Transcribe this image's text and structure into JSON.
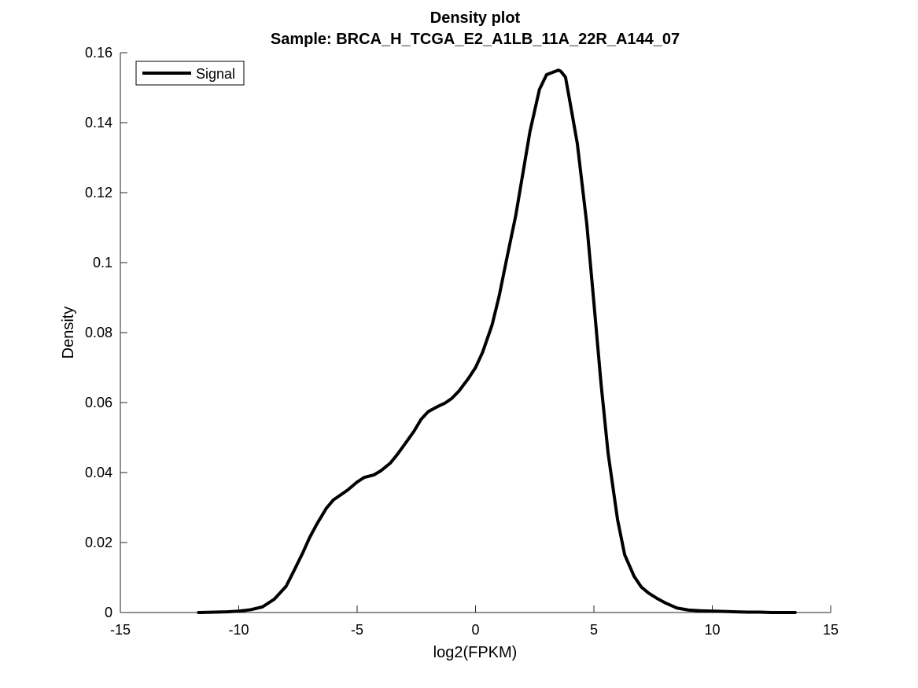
{
  "chart_data": {
    "type": "line",
    "title": "Density plot",
    "subtitle": "Sample: BRCA_H_TCGA_E2_A1LB_11A_22R_A144_07",
    "xlabel": "log2(FPKM)",
    "ylabel": "Density",
    "xlim": [
      -15,
      15
    ],
    "ylim": [
      0,
      0.16
    ],
    "xticks": [
      -15,
      -10,
      -5,
      0,
      5,
      10,
      15
    ],
    "xtick_labels": [
      "-15",
      "-10",
      "-5",
      "0",
      "5",
      "10",
      "15"
    ],
    "yticks": [
      0,
      0.02,
      0.04,
      0.06,
      0.08,
      0.1,
      0.12,
      0.14,
      0.16
    ],
    "ytick_labels": [
      "0",
      "0.02",
      "0.04",
      "0.06",
      "0.08",
      "0.1",
      "0.12",
      "0.14",
      "0.16"
    ],
    "grid": false,
    "legend_position": "top-left",
    "series": [
      {
        "name": "Signal",
        "color": "#000000",
        "x": [
          -11.7,
          -11.0,
          -10.5,
          -10.0,
          -9.5,
          -9.0,
          -8.5,
          -8.0,
          -7.7,
          -7.3,
          -7.0,
          -6.7,
          -6.3,
          -6.0,
          -5.7,
          -5.4,
          -5.0,
          -4.7,
          -4.3,
          -4.0,
          -3.6,
          -3.3,
          -3.0,
          -2.6,
          -2.3,
          -2.0,
          -1.7,
          -1.5,
          -1.3,
          -1.0,
          -0.7,
          -0.3,
          0.0,
          0.3,
          0.7,
          1.0,
          1.3,
          1.7,
          2.0,
          2.3,
          2.7,
          3.0,
          3.3,
          3.5,
          3.6,
          3.8,
          4.0,
          4.3,
          4.7,
          5.0,
          5.3,
          5.6,
          6.0,
          6.3,
          6.7,
          7.0,
          7.3,
          7.7,
          8.0,
          8.5,
          9.0,
          9.5,
          10.0,
          10.5,
          11.0,
          11.5,
          12.0,
          12.5,
          13.0,
          13.5
        ],
        "y": [
          0.0,
          0.0001,
          0.0002,
          0.0004,
          0.0008,
          0.0016,
          0.0038,
          0.0075,
          0.0115,
          0.017,
          0.0215,
          0.0253,
          0.0298,
          0.0322,
          0.0336,
          0.035,
          0.0373,
          0.0386,
          0.0393,
          0.0405,
          0.0427,
          0.0452,
          0.048,
          0.0518,
          0.0552,
          0.0574,
          0.0585,
          0.0592,
          0.0598,
          0.0612,
          0.0633,
          0.0669,
          0.07,
          0.0744,
          0.0822,
          0.0905,
          0.1005,
          0.1135,
          0.1255,
          0.1375,
          0.1495,
          0.1537,
          0.1545,
          0.155,
          0.1547,
          0.153,
          0.1455,
          0.134,
          0.111,
          0.0885,
          0.0655,
          0.0455,
          0.0265,
          0.0165,
          0.0103,
          0.0073,
          0.0056,
          0.0039,
          0.0028,
          0.0013,
          0.0007,
          0.0005,
          0.0004,
          0.0003,
          0.0002,
          0.0001,
          0.0001,
          0.0,
          0.0,
          0.0
        ]
      }
    ]
  }
}
